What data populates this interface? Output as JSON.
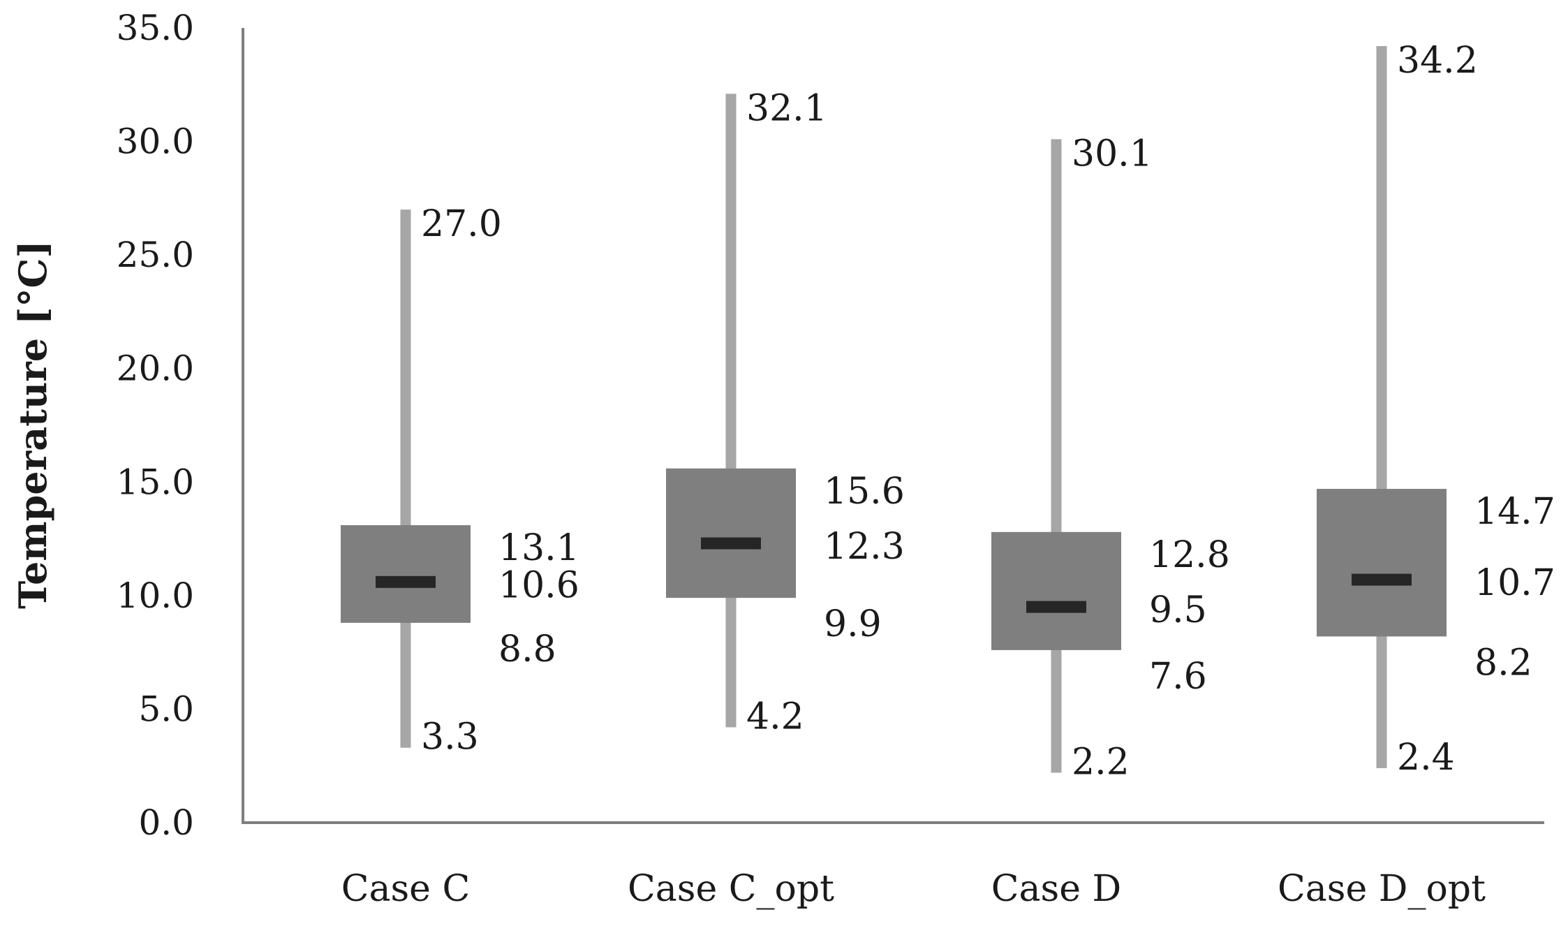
{
  "chart_data": {
    "type": "boxplot",
    "ylabel": "Temperature [°C]",
    "ylim": [
      0,
      35
    ],
    "yticks": [
      "0.0",
      "5.0",
      "10.0",
      "15.0",
      "20.0",
      "25.0",
      "30.0",
      "35.0"
    ],
    "grid": false,
    "categories": [
      "Case C",
      "Case C_opt",
      "Case D",
      "Case D_opt"
    ],
    "boxes": [
      {
        "category": "Case C",
        "min": 3.3,
        "q1": 8.8,
        "median": 10.6,
        "q3": 13.1,
        "max": 27.0,
        "labels": {
          "min": "3.3",
          "q1": "8.8",
          "median": "10.6",
          "q3": "13.1",
          "max": "27.0"
        }
      },
      {
        "category": "Case C_opt",
        "min": 4.2,
        "q1": 9.9,
        "median": 12.3,
        "q3": 15.6,
        "max": 32.1,
        "labels": {
          "min": "4.2",
          "q1": "9.9",
          "median": "12.3",
          "q3": "15.6",
          "max": "32.1"
        }
      },
      {
        "category": "Case D",
        "min": 2.2,
        "q1": 7.6,
        "median": 9.5,
        "q3": 12.8,
        "max": 30.1,
        "labels": {
          "min": "2.2",
          "q1": "7.6",
          "median": "9.5",
          "q3": "12.8",
          "max": "30.1"
        }
      },
      {
        "category": "Case D_opt",
        "min": 2.4,
        "q1": 8.2,
        "median": 10.7,
        "q3": 14.7,
        "max": 34.2,
        "labels": {
          "min": "2.4",
          "q1": "8.2",
          "median": "10.7",
          "q3": "14.7",
          "max": "34.2"
        }
      }
    ],
    "colors": {
      "whisker": "#a6a6a6",
      "box": "#7f7f7f",
      "median": "#262626",
      "axis": "#7f7f7f"
    }
  }
}
